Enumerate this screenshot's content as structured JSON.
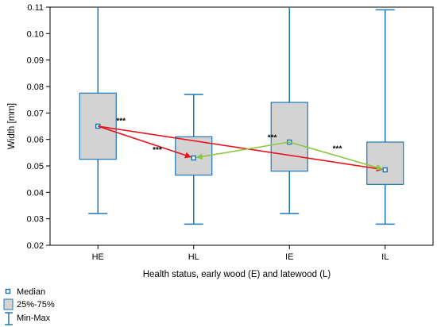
{
  "chart_data": {
    "type": "box",
    "xlabel": "Health status, early wood (E) and latewood (L)",
    "ylabel": "Width [mm]",
    "ylim": [
      0.02,
      0.11
    ],
    "yticks": [
      "0.02",
      "0.03",
      "0.04",
      "0.05",
      "0.06",
      "0.07",
      "0.08",
      "0.09",
      "0.10",
      "0.11"
    ],
    "categories": [
      "HE",
      "HL",
      "IE",
      "IL"
    ],
    "boxes": [
      {
        "category": "HE",
        "min": 0.032,
        "q1": 0.0525,
        "median": 0.065,
        "q3": 0.0775,
        "max": 0.11
      },
      {
        "category": "HL",
        "min": 0.028,
        "q1": 0.0465,
        "median": 0.053,
        "q3": 0.061,
        "max": 0.077
      },
      {
        "category": "IE",
        "min": 0.032,
        "q1": 0.048,
        "median": 0.059,
        "q3": 0.074,
        "max": 0.11
      },
      {
        "category": "IL",
        "min": 0.028,
        "q1": 0.043,
        "median": 0.0485,
        "q3": 0.059,
        "max": 0.109
      }
    ],
    "comparisons": [
      {
        "from": "HE",
        "to": "HL",
        "color": "#e8141b",
        "label": "***"
      },
      {
        "from": "HE",
        "to": "IL",
        "color": "#e8141b",
        "label": "***"
      },
      {
        "from": "IE",
        "to": "HL",
        "color": "#8dc63f",
        "label": "***"
      },
      {
        "from": "IE",
        "to": "IL",
        "color": "#8dc63f",
        "label": "***"
      }
    ],
    "legend": {
      "position": "bottom-left",
      "items": [
        {
          "symbol": "median-marker",
          "label": "Median"
        },
        {
          "symbol": "box",
          "label": "25%-75%"
        },
        {
          "symbol": "whisker",
          "label": "Min-Max"
        }
      ]
    },
    "grid": false,
    "colors": {
      "box_fill": "#d3d3d3",
      "box_stroke": "#1f77b4",
      "median_marker": "#1f77b4",
      "axis": "#000000"
    }
  }
}
